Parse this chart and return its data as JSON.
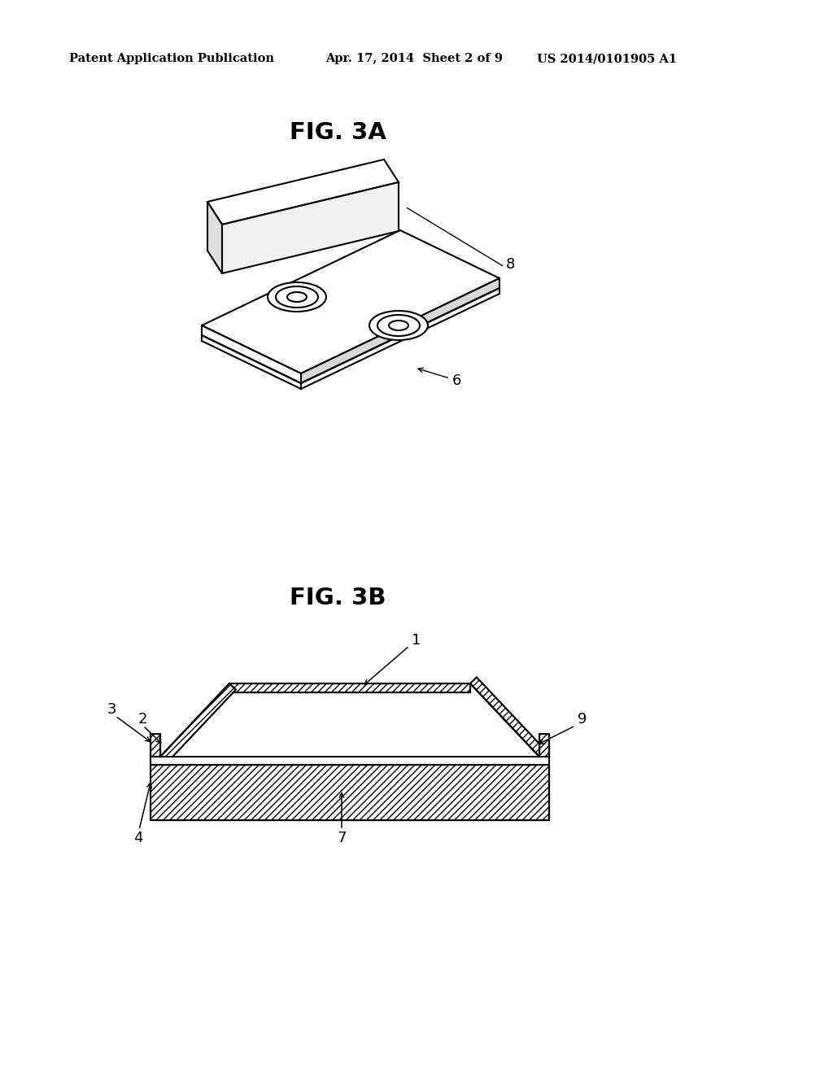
{
  "background_color": "#ffffff",
  "header_left": "Patent Application Publication",
  "header_center": "Apr. 17, 2014  Sheet 2 of 9",
  "header_right": "US 2014/0101905 A1",
  "fig3a_label": "FIG. 3A",
  "fig3b_label": "FIG. 3B",
  "label_8": "8",
  "label_6": "6",
  "label_1": "1",
  "label_2": "2",
  "label_3": "3",
  "label_4": "4",
  "label_7": "7",
  "label_9": "9",
  "line_color": "#000000"
}
